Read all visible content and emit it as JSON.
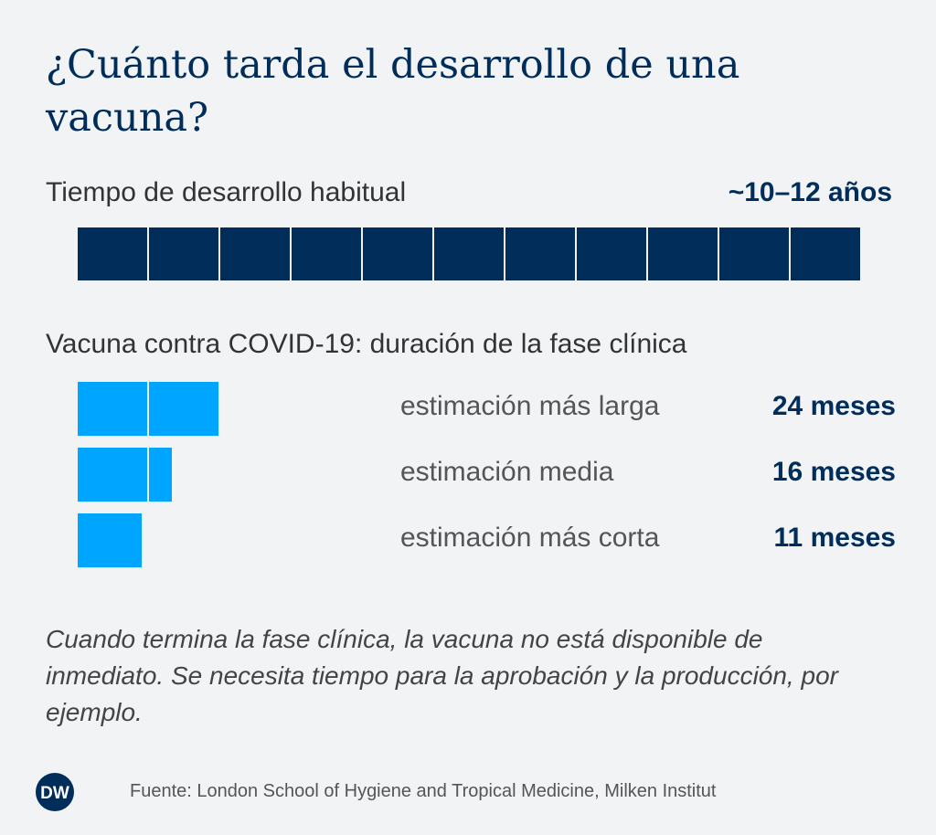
{
  "chart_data": {
    "type": "bar",
    "title": "¿Cuánto tarda el desarrollo de una vacuna?",
    "habitual": {
      "label": "Tiempo de desarrollo habitual",
      "value_label": "~10–12 años",
      "segments": 11
    },
    "covid": {
      "subtitle": "Vacuna contra COVID-19: duración de la fase clínica",
      "unit_months": 12,
      "categories": [
        "estimación más larga",
        "estimación media",
        "estimación más corta"
      ],
      "values": [
        24,
        16,
        11
      ],
      "value_labels": [
        "24 meses",
        "16 meses",
        "11 meses"
      ]
    },
    "note": "Cuando termina la fase clínica, la vacuna no está disponible de inmediato. Se necesita tiempo para la aprobación y la producción, por ejemplo.",
    "source": "Fuente: London School of Hygiene and Tropical Medicine, Milken Institut",
    "logo_text": "DW",
    "colors": {
      "dark": "#002d5a",
      "light": "#00a5ff",
      "background": "#f1f3f5"
    }
  }
}
